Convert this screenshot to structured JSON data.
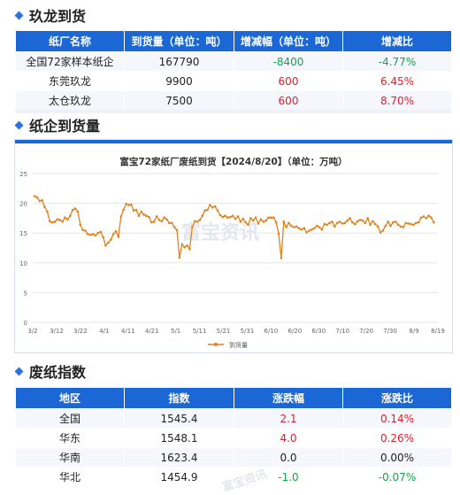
{
  "section1": {
    "title": "玖龙到货",
    "headers": [
      "纸厂名称",
      "到货量（单位：吨）",
      "增减幅（单位：吨）",
      "增减比"
    ],
    "rows": [
      {
        "name": "全国72家样本纸企",
        "volume": "167790",
        "change": "-8400",
        "ratio": "-4.77%",
        "trend": "down"
      },
      {
        "name": "东莞玖龙",
        "volume": "9900",
        "change": "600",
        "ratio": "6.45%",
        "trend": "up"
      },
      {
        "name": "太仓玖龙",
        "volume": "7500",
        "change": "600",
        "ratio": "8.70%",
        "trend": "up"
      }
    ]
  },
  "section2": {
    "title": "纸企到货量"
  },
  "section3": {
    "title": "废纸指数",
    "headers": [
      "地区",
      "指数",
      "涨跌幅",
      "涨跌比"
    ],
    "rows": [
      {
        "region": "全国",
        "index": "1545.4",
        "change": "2.1",
        "ratio": "0.14%",
        "trend": "up"
      },
      {
        "region": "华东",
        "index": "1548.1",
        "change": "4.0",
        "ratio": "0.26%",
        "trend": "up"
      },
      {
        "region": "华南",
        "index": "1623.4",
        "change": "0.0",
        "ratio": "0.00%",
        "trend": "flat"
      },
      {
        "region": "华北",
        "index": "1454.9",
        "change": "-1.0",
        "ratio": "-0.07%",
        "trend": "down"
      }
    ]
  },
  "colors": {
    "header_blue": "#1c67d6",
    "up_red": "#e11d2a",
    "down_green": "#16a34a",
    "series_orange": "#e2801f"
  },
  "watermark": "富宝资讯",
  "chart_data": {
    "type": "line",
    "title": "富宝72家纸厂废纸到货【2024/8/20】（单位：万吨）",
    "xlabel": "",
    "ylabel": "",
    "ylim": [
      0,
      25
    ],
    "yticks": [
      "0",
      "5",
      "10",
      "15",
      "20",
      "25"
    ],
    "xticks": [
      "3/2",
      "3/12",
      "3/22",
      "4/1",
      "4/11",
      "4/21",
      "5/1",
      "5/11",
      "5/21",
      "5/31",
      "6/10",
      "6/20",
      "6/30",
      "7/10",
      "7/20",
      "7/30",
      "8/9",
      "8/19"
    ],
    "grid": true,
    "legend": "bottom-center",
    "series": [
      {
        "name": "到货量",
        "values": [
          21.2,
          21.0,
          20.4,
          20.5,
          19.4,
          18.6,
          17.0,
          16.8,
          16.9,
          17.3,
          17.2,
          16.9,
          17.6,
          17.3,
          17.9,
          18.9,
          19.1,
          18.6,
          16.4,
          15.5,
          15.4,
          14.8,
          14.7,
          14.8,
          14.6,
          15.0,
          15.2,
          14.3,
          12.9,
          13.4,
          13.9,
          14.8,
          15.3,
          14.4,
          17.8,
          18.9,
          19.9,
          19.7,
          19.8,
          18.8,
          18.9,
          17.9,
          18.6,
          18.1,
          17.9,
          17.7,
          16.8,
          16.9,
          17.8,
          17.2,
          17.0,
          17.6,
          17.3,
          16.7,
          16.7,
          16.0,
          15.5,
          10.9,
          13.1,
          12.6,
          12.9,
          12.3,
          16.0,
          17.0,
          16.9,
          17.2,
          17.9,
          18.8,
          18.9,
          19.7,
          19.3,
          19.5,
          18.8,
          18.0,
          17.7,
          17.9,
          17.6,
          17.7,
          17.9,
          17.4,
          17.8,
          16.9,
          17.4,
          16.8,
          16.4,
          17.5,
          17.1,
          17.6,
          16.6,
          17.3,
          16.9,
          17.1,
          17.6,
          17.6,
          17.6,
          16.8,
          14.9,
          10.8,
          16.9,
          16.0,
          16.7,
          16.2,
          16.0,
          16.1,
          15.8,
          15.6,
          15.8,
          15.1,
          15.4,
          15.6,
          15.8,
          16.2,
          16.0,
          15.6,
          16.5,
          16.4,
          16.7,
          16.9,
          16.1,
          16.7,
          16.9,
          16.6,
          16.7,
          17.1,
          17.5,
          16.8,
          16.5,
          17.0,
          17.2,
          17.1,
          16.7,
          17.5,
          16.4,
          17.0,
          16.5,
          16.1,
          15.1,
          15.4,
          16.2,
          16.9,
          16.2,
          16.8,
          16.9,
          16.4,
          16.1,
          16.0,
          16.7,
          16.6,
          16.5,
          16.4,
          16.7,
          16.8,
          17.6,
          17.8,
          17.5,
          17.9,
          17.6,
          16.8
        ]
      }
    ]
  }
}
